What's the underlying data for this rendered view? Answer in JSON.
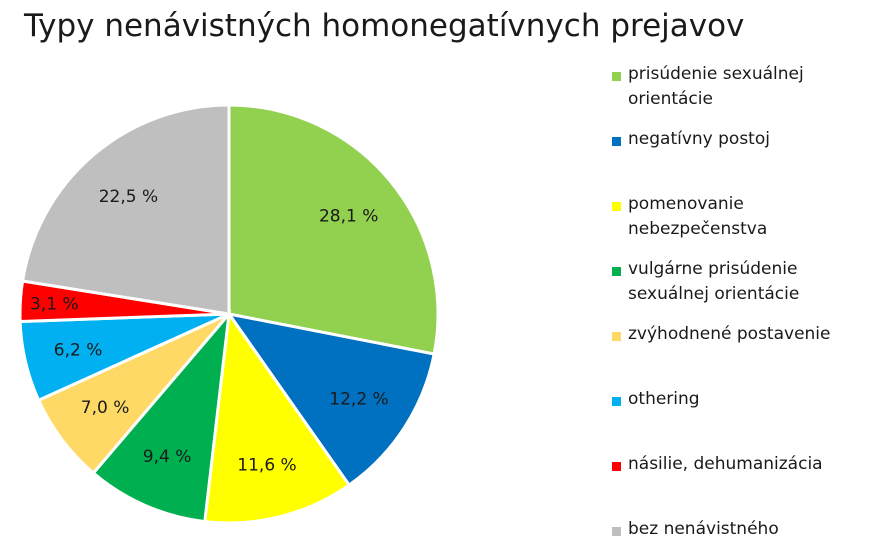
{
  "chart_data": {
    "type": "pie",
    "title": "Typy nenávistných homonegatívnych prejavov",
    "slices": [
      {
        "label": "prisúdenie sexuálnej\norientácie",
        "value": 28.1,
        "value_label": "28,1 %",
        "color": "#92d050"
      },
      {
        "label": "negatívny postoj",
        "value": 12.2,
        "value_label": "12,2 %",
        "color": "#0070c0"
      },
      {
        "label": "pomenovanie\nnebezpečenstva",
        "value": 11.6,
        "value_label": "11,6 %",
        "color": "#ffff00"
      },
      {
        "label": "vulgárne prisúdenie\nsexuálnej orientácie",
        "value": 9.4,
        "value_label": "9,4 %",
        "color": "#00b050"
      },
      {
        "label": "zvýhodnené postavenie",
        "value": 7.0,
        "value_label": "7,0 %",
        "color": "#ffd966"
      },
      {
        "label": "othering",
        "value": 6.2,
        "value_label": "6,2 %",
        "color": "#00b0f0"
      },
      {
        "label": "násilie, dehumanizácia",
        "value": 3.1,
        "value_label": "3,1 %",
        "color": "#ff0000"
      },
      {
        "label": "bez nenávistného",
        "value": 22.5,
        "value_label": "22,5 %",
        "color": "#bfbfbf"
      }
    ],
    "legend_position": "right"
  }
}
